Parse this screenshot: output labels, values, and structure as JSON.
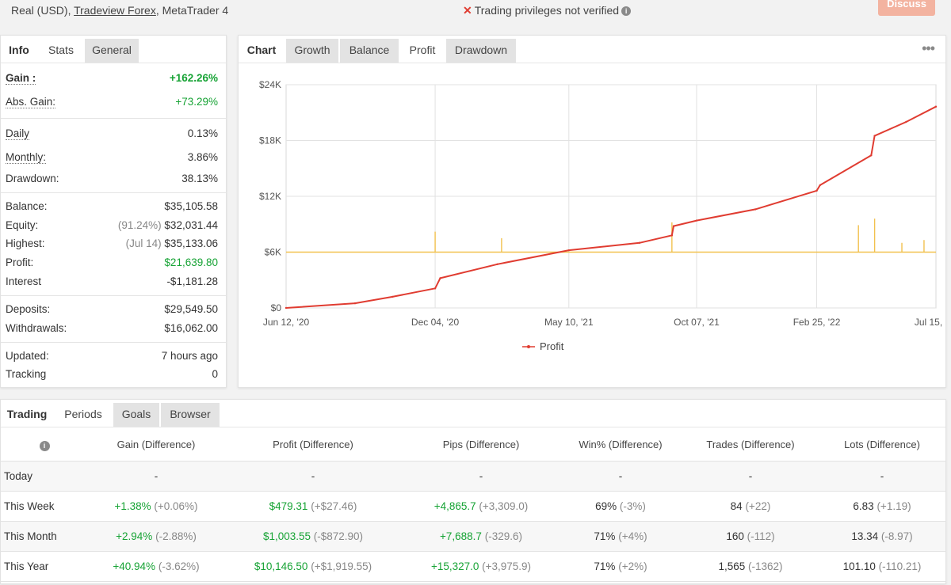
{
  "account": {
    "type": "Real (USD),",
    "broker": "Tradeview Forex",
    "platform": ", MetaTrader 4",
    "privileges": "Trading privileges not verified",
    "discuss_label": "Discuss"
  },
  "info_panel": {
    "tabs": [
      "Info",
      "Stats",
      "General"
    ],
    "gain_label": "Gain :",
    "gain_value": "+162.26%",
    "abs_gain_label": "Abs. Gain:",
    "abs_gain_value": "+73.29%",
    "daily_label": "Daily",
    "daily_value": "0.13%",
    "monthly_label": "Monthly:",
    "monthly_value": "3.86%",
    "drawdown_label": "Drawdown:",
    "drawdown_value": "38.13%",
    "balance_label": "Balance:",
    "balance_value": "$35,105.58",
    "equity_label": "Equity:",
    "equity_pct": "(91.24%)",
    "equity_value": "$32,031.44",
    "highest_label": "Highest:",
    "highest_date": "(Jul 14)",
    "highest_value": "$35,133.06",
    "profit_label": "Profit:",
    "profit_value": "$21,639.80",
    "interest_label": "Interest",
    "interest_value": "-$1,181.28",
    "deposits_label": "Deposits:",
    "deposits_value": "$29,549.50",
    "withdrawals_label": "Withdrawals:",
    "withdrawals_value": "$16,062.00",
    "updated_label": "Updated:",
    "updated_value": "7 hours ago",
    "tracking_label": "Tracking",
    "tracking_value": "0"
  },
  "chart_panel": {
    "tabs": [
      "Chart",
      "Growth",
      "Balance",
      "Profit",
      "Drawdown"
    ],
    "active_tab": "Profit"
  },
  "chart_data": {
    "type": "line",
    "xlabel": "",
    "ylabel": "",
    "yticks": [
      "$0",
      "$6K",
      "$12K",
      "$18K",
      "$24K"
    ],
    "ylim": [
      0,
      24000
    ],
    "xticks": [
      "Jun 12, '20",
      "Dec 04, '20",
      "May 10, '21",
      "Oct 07, '21",
      "Feb 25, '22",
      "Jul 15, '22"
    ],
    "series": [
      {
        "name": "Profit",
        "color": "#e03c31",
        "x": [
          "Jun 12, '20",
          "Sep 01, '20",
          "Oct 15, '20",
          "Dec 04, '20",
          "Dec 10, '20",
          "Feb 15, '21",
          "May 10, '21",
          "Aug 01, '21",
          "Sep 08, '21",
          "Sep 10, '21",
          "Oct 07, '21",
          "Dec 15, '21",
          "Feb 25, '22",
          "Mar 01, '22",
          "Apr 30, '22",
          "May 04, '22",
          "Jun 10, '22",
          "Jul 15, '22"
        ],
        "y": [
          0,
          500,
          1200,
          2100,
          3200,
          4700,
          6200,
          7000,
          7800,
          8800,
          9400,
          10600,
          12600,
          13200,
          16400,
          18500,
          20000,
          21640
        ]
      },
      {
        "name": "",
        "color": "#f2c14e",
        "baseline": 6000,
        "spikes": [
          {
            "x": "Dec 04, '20",
            "y": 8200
          },
          {
            "x": "Feb 20, '21",
            "y": 7500
          },
          {
            "x": "Sep 08, '21",
            "y": 9200
          },
          {
            "x": "Apr 15, '22",
            "y": 8900
          },
          {
            "x": "May 04, '22",
            "y": 9600
          },
          {
            "x": "Jun 05, '22",
            "y": 7000
          },
          {
            "x": "Jul 01, '22",
            "y": 7300
          }
        ]
      }
    ],
    "legend": [
      "Profit"
    ],
    "legend_placement": "bottom",
    "grid": true
  },
  "periods_panel": {
    "tabs": [
      "Trading",
      "Periods",
      "Goals",
      "Browser"
    ],
    "headers": [
      "Gain (Difference)",
      "Profit (Difference)",
      "Pips (Difference)",
      "Win% (Difference)",
      "Trades (Difference)",
      "Lots (Difference)"
    ],
    "rows": [
      {
        "label": "Today",
        "gain": "-",
        "gain_diff": "",
        "profit": "-",
        "profit_diff": "",
        "pips": "-",
        "pips_diff": "",
        "win": "-",
        "win_diff": "",
        "trades": "-",
        "trades_diff": "",
        "lots": "-",
        "lots_diff": ""
      },
      {
        "label": "This Week",
        "gain": "+1.38%",
        "gain_diff": "(+0.06%)",
        "profit": "$479.31",
        "profit_diff": "(+$27.46)",
        "pips": "+4,865.7",
        "pips_diff": "(+3,309.0)",
        "win": "69%",
        "win_diff": "(-3%)",
        "trades": "84",
        "trades_diff": "(+22)",
        "lots": "6.83",
        "lots_diff": "(+1.19)"
      },
      {
        "label": "This Month",
        "gain": "+2.94%",
        "gain_diff": "(-2.88%)",
        "profit": "$1,003.55",
        "profit_diff": "(-$872.90)",
        "pips": "+7,688.7",
        "pips_diff": "(-329.6)",
        "win": "71%",
        "win_diff": "(+4%)",
        "trades": "160",
        "trades_diff": "(-112)",
        "lots": "13.34",
        "lots_diff": "(-8.97)"
      },
      {
        "label": "This Year",
        "gain": "+40.94%",
        "gain_diff": "(-3.62%)",
        "profit": "$10,146.50",
        "profit_diff": "(+$1,919.55)",
        "pips": "+15,327.0",
        "pips_diff": "(+3,975.9)",
        "win": "71%",
        "win_diff": "(+2%)",
        "trades": "1,565",
        "trades_diff": "(-1362)",
        "lots": "101.10",
        "lots_diff": "(-110.21)"
      }
    ]
  }
}
